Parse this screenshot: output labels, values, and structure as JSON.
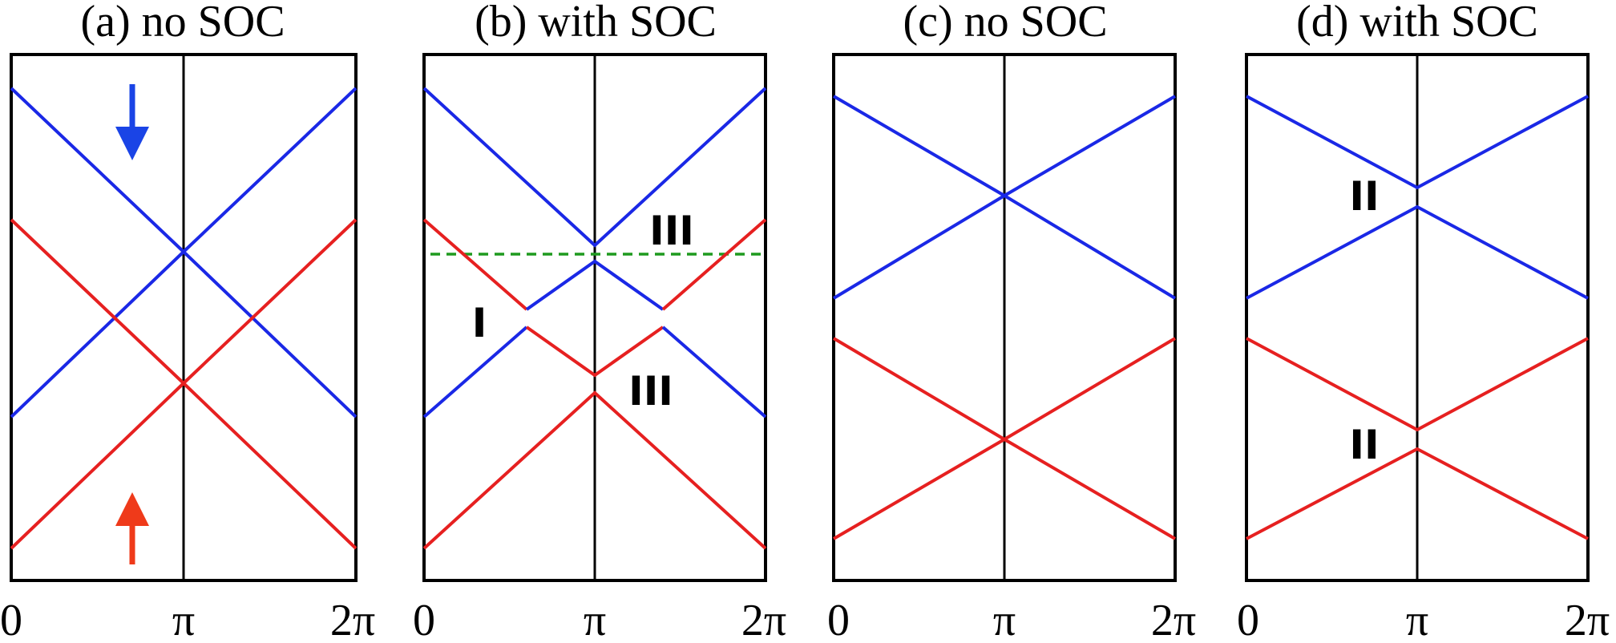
{
  "panels": [
    {
      "title": "(a) no SOC",
      "ticks": [
        "0",
        "π",
        "2π"
      ],
      "labels": [],
      "colors": {
        "spin_down": "#1a28e6",
        "spin_up": "#e62020"
      },
      "arrow_icons": [
        "spin-down-arrow-icon",
        "spin-up-arrow-icon"
      ]
    },
    {
      "title": "(b) with SOC",
      "ticks": [
        "0",
        "π",
        "2π"
      ],
      "labels": [
        "I",
        "III",
        "III"
      ],
      "fermi_line_color": "#1f9a1f"
    },
    {
      "title": "(c) no SOC",
      "ticks": [
        "0",
        "π",
        "2π"
      ],
      "labels": []
    },
    {
      "title": "(d) with SOC",
      "ticks": [
        "0",
        "π",
        "2π"
      ],
      "labels": [
        "II",
        "II"
      ]
    }
  ]
}
